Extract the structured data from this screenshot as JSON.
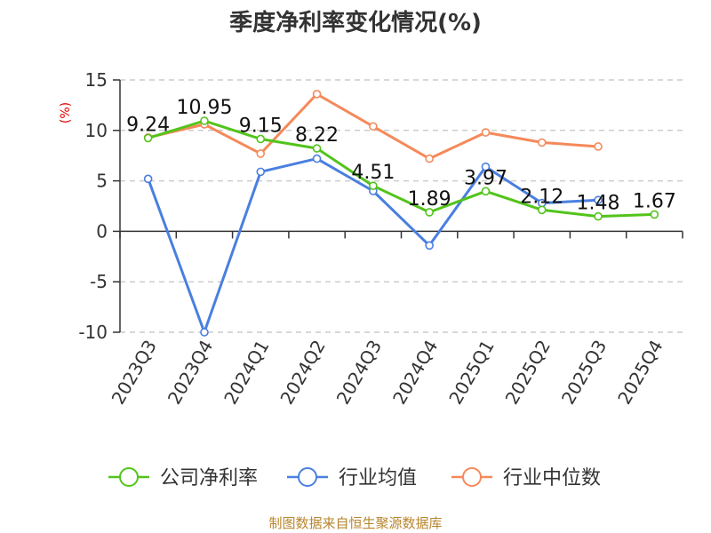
{
  "chart_data": {
    "type": "line",
    "title": "季度净利率变化情况(%)",
    "ylabel": "(%)",
    "xlabel": "",
    "ylim": [
      -10,
      15
    ],
    "yticks": [
      15,
      10,
      5,
      0,
      -5,
      -10
    ],
    "grid": true,
    "legend_position": "bottom",
    "categories": [
      "2023Q3",
      "2023Q4",
      "2024Q1",
      "2024Q2",
      "2024Q3",
      "2024Q4",
      "2025Q1",
      "2025Q2",
      "2025Q3",
      "2025Q4"
    ],
    "series": [
      {
        "name": "公司净利率",
        "color": "#52c41a",
        "values": [
          9.24,
          10.95,
          9.15,
          8.22,
          4.51,
          1.89,
          3.97,
          2.12,
          1.48,
          1.67
        ],
        "labels": [
          "9.24",
          "10.95",
          "9.15",
          "8.22",
          "4.51",
          "1.89",
          "3.97",
          "2.12",
          "1.48",
          "1.67"
        ]
      },
      {
        "name": "行业均值",
        "color": "#4a7fe0",
        "values": [
          5.2,
          -10.0,
          5.9,
          7.2,
          4.0,
          -1.4,
          6.4,
          2.8,
          3.1,
          null
        ]
      },
      {
        "name": "行业中位数",
        "color": "#f5895a",
        "values": [
          9.3,
          10.6,
          7.7,
          13.6,
          10.4,
          7.2,
          9.8,
          8.8,
          8.4,
          null
        ]
      }
    ]
  },
  "source": "制图数据来自恒生聚源数据库"
}
